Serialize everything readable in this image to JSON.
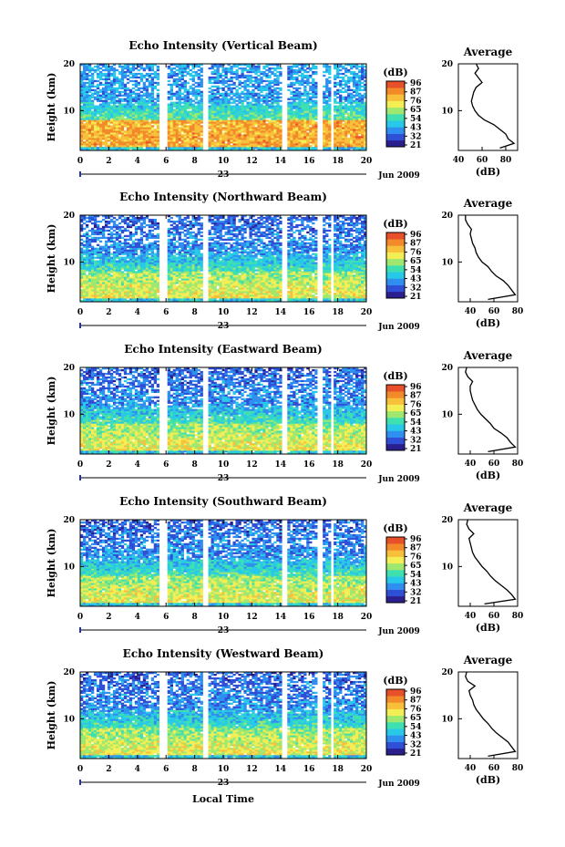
{
  "figure": {
    "xlabel": "Local Time",
    "day_label": "23",
    "month_label": "Jun 2009"
  },
  "colorbar": {
    "unit": "(dB)",
    "tick_values": [
      96,
      87,
      76,
      65,
      54,
      43,
      32,
      21
    ],
    "colors": [
      "#2b1f8f",
      "#2f4fd6",
      "#2f8ff0",
      "#28c8e8",
      "#3fe0b0",
      "#9ee870",
      "#f4ee55",
      "#f8c03a",
      "#f28a2a",
      "#e8502a"
    ]
  },
  "chart_data": [
    {
      "type": "heatmap",
      "title": "Echo Intensity (Vertical Beam)",
      "beam": "vertical",
      "xlabel": "",
      "ylabel": "Height (km)",
      "xlim": [
        0,
        20
      ],
      "ylim": [
        1.5,
        20
      ],
      "xticks": [
        0,
        2,
        4,
        6,
        8,
        10,
        12,
        14,
        16,
        18,
        20
      ],
      "yticks": [
        10,
        20
      ],
      "data_gaps_hours": [
        [
          5.5,
          6.0
        ],
        [
          8.6,
          9.0
        ],
        [
          14.1,
          14.5
        ],
        [
          16.6,
          17.0
        ],
        [
          17.5,
          17.8
        ]
      ],
      "value_range_dB": [
        21,
        96
      ],
      "profile": {
        "title": "Average",
        "xlabel": "(dB)",
        "xlim": [
          40,
          90
        ],
        "xticks": [
          40,
          60,
          80
        ],
        "ylim": [
          1.5,
          20
        ],
        "yticks": [
          10,
          20
        ],
        "height_km": [
          2,
          3,
          4,
          5,
          6,
          7,
          8,
          9,
          10,
          11,
          12,
          13,
          14,
          15,
          16,
          17,
          18,
          19,
          20
        ],
        "value_dB": [
          75,
          87,
          82,
          80,
          75,
          70,
          62,
          57,
          54,
          52,
          51,
          52,
          53,
          55,
          60,
          57,
          54,
          57,
          55
        ]
      }
    },
    {
      "type": "heatmap",
      "title": "Echo Intensity (Northward Beam)",
      "beam": "northward",
      "xlabel": "",
      "ylabel": "Height (km)",
      "xlim": [
        0,
        20
      ],
      "ylim": [
        1.5,
        20
      ],
      "xticks": [
        0,
        2,
        4,
        6,
        8,
        10,
        12,
        14,
        16,
        18,
        20
      ],
      "yticks": [
        10,
        20
      ],
      "data_gaps_hours": [
        [
          5.5,
          6.0
        ],
        [
          8.6,
          9.0
        ],
        [
          14.1,
          14.5
        ],
        [
          16.6,
          17.0
        ],
        [
          17.5,
          17.8
        ]
      ],
      "value_range_dB": [
        21,
        96
      ],
      "profile": {
        "title": "Average",
        "xlabel": "(dB)",
        "xlim": [
          30,
          80
        ],
        "xticks": [
          40,
          60,
          80
        ],
        "ylim": [
          1.5,
          20
        ],
        "yticks": [
          10,
          20
        ],
        "height_km": [
          2,
          3,
          4,
          5,
          6,
          7,
          8,
          9,
          10,
          11,
          12,
          13,
          14,
          15,
          16,
          17,
          18,
          19,
          20
        ],
        "value_dB": [
          55,
          78,
          75,
          72,
          68,
          62,
          58,
          55,
          50,
          47,
          45,
          44,
          42,
          41,
          40,
          41,
          38,
          36,
          36
        ]
      }
    },
    {
      "type": "heatmap",
      "title": "Echo Intensity (Eastward Beam)",
      "beam": "eastward",
      "xlabel": "",
      "ylabel": "Height (km)",
      "xlim": [
        0,
        20
      ],
      "ylim": [
        1.5,
        20
      ],
      "xticks": [
        0,
        2,
        4,
        6,
        8,
        10,
        12,
        14,
        16,
        18,
        20
      ],
      "yticks": [
        10,
        20
      ],
      "data_gaps_hours": [
        [
          5.5,
          6.0
        ],
        [
          8.6,
          9.0
        ],
        [
          14.1,
          14.5
        ],
        [
          16.6,
          17.0
        ],
        [
          17.5,
          17.8
        ]
      ],
      "value_range_dB": [
        21,
        96
      ],
      "profile": {
        "title": "Average",
        "xlabel": "(dB)",
        "xlim": [
          30,
          80
        ],
        "xticks": [
          40,
          60,
          80
        ],
        "ylim": [
          1.5,
          20
        ],
        "yticks": [
          10,
          20
        ],
        "height_km": [
          2,
          3,
          4,
          5,
          6,
          7,
          8,
          9,
          10,
          11,
          12,
          13,
          14,
          15,
          16,
          17,
          18,
          19,
          20
        ],
        "value_dB": [
          55,
          78,
          74,
          71,
          66,
          60,
          57,
          53,
          49,
          46,
          44,
          42,
          41,
          40,
          40,
          42,
          38,
          36,
          37
        ]
      }
    },
    {
      "type": "heatmap",
      "title": "Echo Intensity (Southward Beam)",
      "beam": "southward",
      "xlabel": "",
      "ylabel": "Height (km)",
      "xlim": [
        0,
        20
      ],
      "ylim": [
        1.5,
        20
      ],
      "xticks": [
        0,
        2,
        4,
        6,
        8,
        10,
        12,
        14,
        16,
        18,
        20
      ],
      "yticks": [
        10,
        20
      ],
      "data_gaps_hours": [
        [
          5.5,
          6.0
        ],
        [
          8.6,
          9.0
        ],
        [
          14.1,
          14.5
        ],
        [
          16.6,
          17.0
        ],
        [
          17.5,
          17.8
        ]
      ],
      "value_range_dB": [
        21,
        96
      ],
      "profile": {
        "title": "Average",
        "xlabel": "(dB)",
        "xlim": [
          30,
          80
        ],
        "xticks": [
          40,
          60,
          80
        ],
        "ylim": [
          1.5,
          20
        ],
        "yticks": [
          10,
          20
        ],
        "height_km": [
          2,
          3,
          4,
          5,
          6,
          7,
          8,
          9,
          10,
          11,
          12,
          13,
          14,
          15,
          16,
          17,
          18,
          19,
          20
        ],
        "value_dB": [
          52,
          78,
          75,
          71,
          66,
          61,
          57,
          54,
          50,
          47,
          44,
          42,
          41,
          40,
          39,
          43,
          39,
          37,
          38
        ]
      }
    },
    {
      "type": "heatmap",
      "title": "Echo Intensity (Westward Beam)",
      "beam": "westward",
      "xlabel": "Local Time",
      "ylabel": "Height (km)",
      "xlim": [
        0,
        20
      ],
      "ylim": [
        1.5,
        20
      ],
      "xticks": [
        0,
        2,
        4,
        6,
        8,
        10,
        12,
        14,
        16,
        18,
        20
      ],
      "yticks": [
        10,
        20
      ],
      "data_gaps_hours": [
        [
          5.5,
          6.0
        ],
        [
          8.6,
          9.0
        ],
        [
          14.1,
          14.5
        ],
        [
          16.6,
          17.0
        ],
        [
          17.5,
          17.8
        ]
      ],
      "value_range_dB": [
        21,
        96
      ],
      "profile": {
        "title": "Average",
        "xlabel": "(dB)",
        "xlim": [
          30,
          80
        ],
        "xticks": [
          40,
          60,
          80
        ],
        "ylim": [
          1.5,
          20
        ],
        "yticks": [
          10,
          20
        ],
        "height_km": [
          2,
          3,
          4,
          5,
          6,
          7,
          8,
          9,
          10,
          11,
          12,
          13,
          14,
          15,
          16,
          17,
          18,
          19,
          20
        ],
        "value_dB": [
          55,
          78,
          75,
          72,
          67,
          62,
          58,
          55,
          51,
          48,
          45,
          43,
          42,
          40,
          39,
          44,
          38,
          36,
          37
        ]
      }
    }
  ]
}
